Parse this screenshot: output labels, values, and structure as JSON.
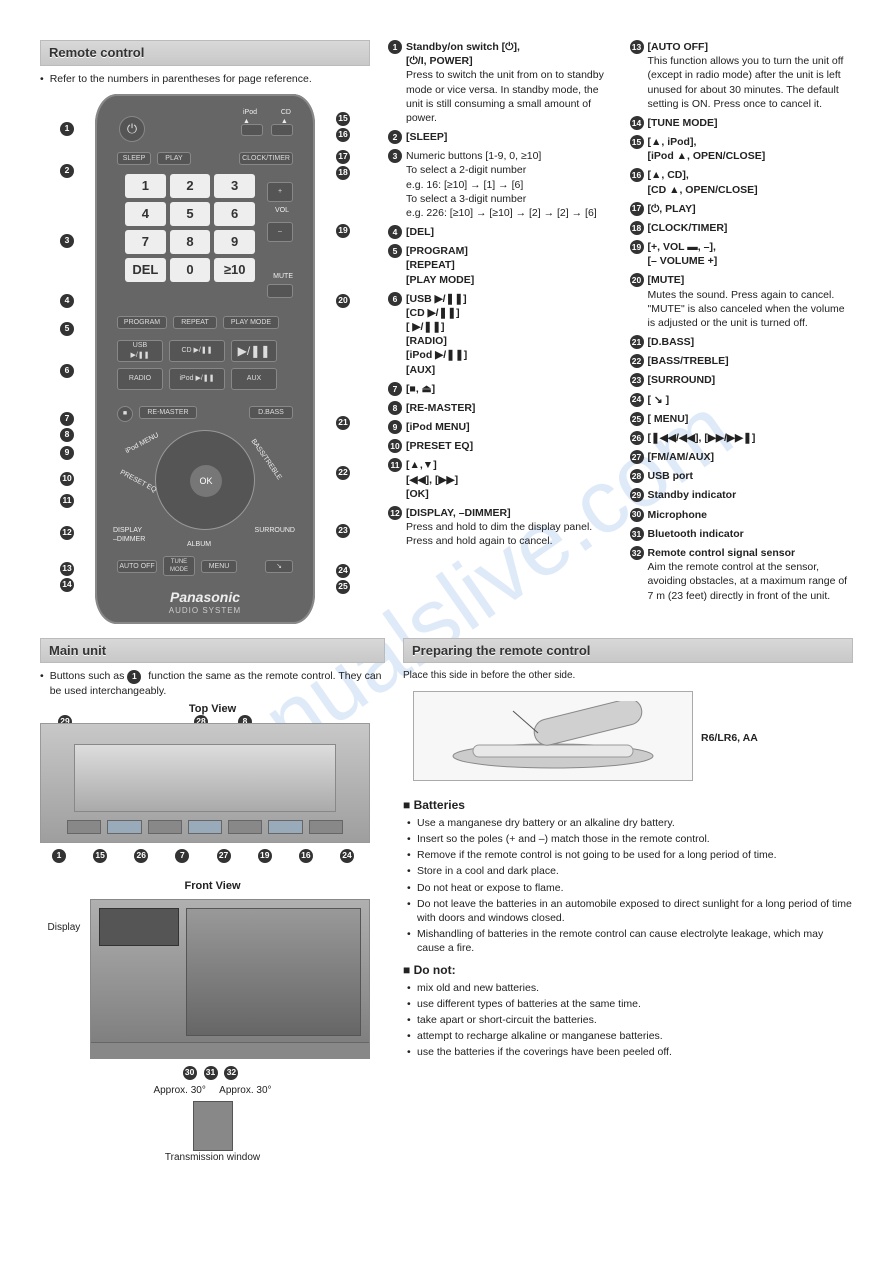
{
  "watermark": "manualslive.com",
  "sections": {
    "remote_control": "Remote control",
    "main_unit": "Main unit",
    "preparing": "Preparing the remote control"
  },
  "remote_intro": "Refer to the numbers in parentheses for page reference.",
  "main_unit_intro_a": "Buttons such as",
  "main_unit_intro_b": "function the same as the remote control. They can be used interchangeably.",
  "main_unit_circle": "1",
  "top_view_label": "Top View",
  "front_view_label": "Front View",
  "display_label": "Display",
  "approx_left": "Approx. 30°",
  "approx_right": "Approx. 30°",
  "transmission": "Transmission window",
  "prep_note": "Place this side in before the other side.",
  "battery_type": "R6/LR6, AA",
  "batteries_head": "Batteries",
  "batteries": [
    "Use a manganese dry battery or an alkaline dry battery.",
    "Insert so the poles (+ and –) match those in the remote control.",
    "Remove if the remote control is not going to be used for a long period of time.",
    "Store in a cool and dark place.",
    "Do not heat or expose to flame.",
    "Do not leave the batteries in an automobile exposed to direct sunlight for a long period of time with doors and windows closed.",
    "Mishandling of batteries in the remote control can cause electrolyte leakage, which may cause a fire."
  ],
  "donot_head": "Do not:",
  "donot": [
    "mix old and new batteries.",
    "use different types of batteries at the same time.",
    "take apart or short-circuit the batteries.",
    "attempt to recharge alkaline or manganese batteries.",
    "use the batteries if the coverings have been peeled off."
  ],
  "legend_col1": [
    {
      "n": "1",
      "title": "Standby/on switch [⏻],\n[⏻/I, POWER]",
      "body": "Press to switch the unit from on to standby mode or vice versa. In standby mode, the unit is still consuming a small amount of power."
    },
    {
      "n": "2",
      "title": "[SLEEP]",
      "body": ""
    },
    {
      "n": "3",
      "title": "",
      "body": "Numeric buttons [1-9, 0, ≥10]\nTo select a 2-digit number\ne.g. 16: [≥10] → [1] → [6]\nTo select a 3-digit number\ne.g. 226: [≥10] → [≥10] → [2] → [2] → [6]"
    },
    {
      "n": "4",
      "title": "[DEL]",
      "body": ""
    },
    {
      "n": "5",
      "title": "[PROGRAM]\n[REPEAT]\n[PLAY MODE]",
      "body": ""
    },
    {
      "n": "6",
      "title": "[USB ▶/❚❚]\n[CD ▶/❚❚]\n[ ▶/❚❚]\n[RADIO]\n[iPod ▶/❚❚]\n[AUX]",
      "body": ""
    },
    {
      "n": "7",
      "title": "[■, ⏏]",
      "body": ""
    },
    {
      "n": "8",
      "title": "[RE-MASTER]",
      "body": ""
    },
    {
      "n": "9",
      "title": "[iPod MENU]",
      "body": ""
    },
    {
      "n": "10",
      "title": "[PRESET EQ]",
      "body": ""
    },
    {
      "n": "11",
      "title": "[▲,▼]\n[◀◀], [▶▶]\n[OK]",
      "body": ""
    },
    {
      "n": "12",
      "title": "[DISPLAY, –DIMMER]",
      "body": "Press and hold to dim the display panel. Press and hold again to cancel."
    }
  ],
  "legend_col2": [
    {
      "n": "13",
      "title": "[AUTO OFF]",
      "body": "This function allows you to turn the unit off (except in radio mode) after the unit is left unused for about 30 minutes. The default setting is ON. Press once to cancel it."
    },
    {
      "n": "14",
      "title": "[TUNE MODE]",
      "body": ""
    },
    {
      "n": "15",
      "title": "[▲, iPod],\n[iPod ▲, OPEN/CLOSE]",
      "body": ""
    },
    {
      "n": "16",
      "title": "[▲, CD],\n[CD ▲, OPEN/CLOSE]",
      "body": ""
    },
    {
      "n": "17",
      "title": "[⏻, PLAY]",
      "body": ""
    },
    {
      "n": "18",
      "title": "[CLOCK/TIMER]",
      "body": ""
    },
    {
      "n": "19",
      "title": "[+, VOL ▬, –],\n[– VOLUME +]",
      "body": ""
    },
    {
      "n": "20",
      "title": "[MUTE]",
      "body": "Mutes the sound. Press again to cancel. \"MUTE\" is also canceled when the volume is adjusted or the unit is turned off."
    },
    {
      "n": "21",
      "title": "[D.BASS]",
      "body": ""
    },
    {
      "n": "22",
      "title": "[BASS/TREBLE]",
      "body": ""
    },
    {
      "n": "23",
      "title": "[SURROUND]",
      "body": ""
    },
    {
      "n": "24",
      "title": "[ ↘ ]",
      "body": ""
    },
    {
      "n": "25",
      "title": "[ MENU]",
      "body": ""
    },
    {
      "n": "26",
      "title": "[❚◀◀/◀◀], [▶▶/▶▶❚]",
      "body": ""
    },
    {
      "n": "27",
      "title": "[FM/AM/AUX]",
      "body": ""
    },
    {
      "n": "28",
      "title": "USB port",
      "body": ""
    },
    {
      "n": "29",
      "title": "Standby indicator",
      "body": ""
    },
    {
      "n": "30",
      "title": "Microphone",
      "body": ""
    },
    {
      "n": "31",
      "title": "Bluetooth indicator",
      "body": ""
    },
    {
      "n": "32",
      "title": "Remote control signal sensor",
      "body": "Aim the remote control at the sensor, avoiding obstacles, at a maximum range of 7 m (23 feet) directly in front of the unit."
    }
  ],
  "remote_brand": "Panasonic",
  "remote_sub": "AUDIO SYSTEM",
  "remote_keys": {
    "sleep": "SLEEP",
    "play": "PLAY",
    "clocktimer": "CLOCK/TIMER",
    "del": "DEL",
    "vol": "VOL",
    "mute": "MUTE",
    "program": "PROGRAM",
    "repeat": "REPEAT",
    "playmode": "PLAY MODE",
    "usb": "USB\n▶/❚❚",
    "cd": "CD ▶/❚❚",
    "bt": "",
    "radio": "RADIO",
    "ipod": "iPod ▶/❚❚",
    "aux": "AUX",
    "remaster": "RE-MASTER",
    "dbass": "D.BASS",
    "ipodmenu": "iPod MENU",
    "preseteq": "PRESET EQ",
    "basstreble": "BASS/TREBLE",
    "ok": "OK",
    "display": "DISPLAY\n–DIMMER",
    "surround": "SURROUND",
    "album": "ALBUM",
    "autooff": "AUTO OFF",
    "tunemode": "TUNE\nMODE",
    "menu": "MENU"
  },
  "top_callouts_upper": [
    "29",
    "28",
    "8"
  ],
  "top_callouts_lower": [
    "1",
    "15",
    "26",
    "7",
    "27",
    "19",
    "16",
    "24"
  ],
  "front_callouts": [
    "30",
    "31",
    "32"
  ]
}
